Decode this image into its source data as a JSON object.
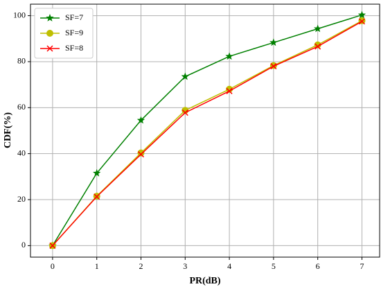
{
  "chart_data": {
    "type": "line",
    "x_label": "PR(dB)",
    "y_label": "CDF(%)",
    "x": [
      0,
      1,
      2,
      3,
      4,
      5,
      6,
      7
    ],
    "series": [
      {
        "name": "SF=7",
        "color": "#008000",
        "marker": "star",
        "values": [
          0,
          31.5,
          54.5,
          73.5,
          82.3,
          88.3,
          94.3,
          100.3
        ]
      },
      {
        "name": "SF=9",
        "color": "#bfbf00",
        "marker": "circle",
        "values": [
          0,
          21.5,
          40.3,
          58.8,
          68,
          78.3,
          87.3,
          97.8
        ]
      },
      {
        "name": "SF=8",
        "color": "#ff0000",
        "marker": "x",
        "values": [
          0,
          21.3,
          39.7,
          57.8,
          67.2,
          78,
          86.6,
          97.5
        ]
      }
    ],
    "xlim": [
      -0.5,
      7.4
    ],
    "xticks": [
      0,
      1,
      2,
      3,
      4,
      5,
      6,
      7
    ],
    "ylim": [
      -5,
      105
    ],
    "yticks": [
      0,
      20,
      40,
      60,
      80,
      100
    ],
    "grid": true,
    "legend": "upper-left"
  }
}
